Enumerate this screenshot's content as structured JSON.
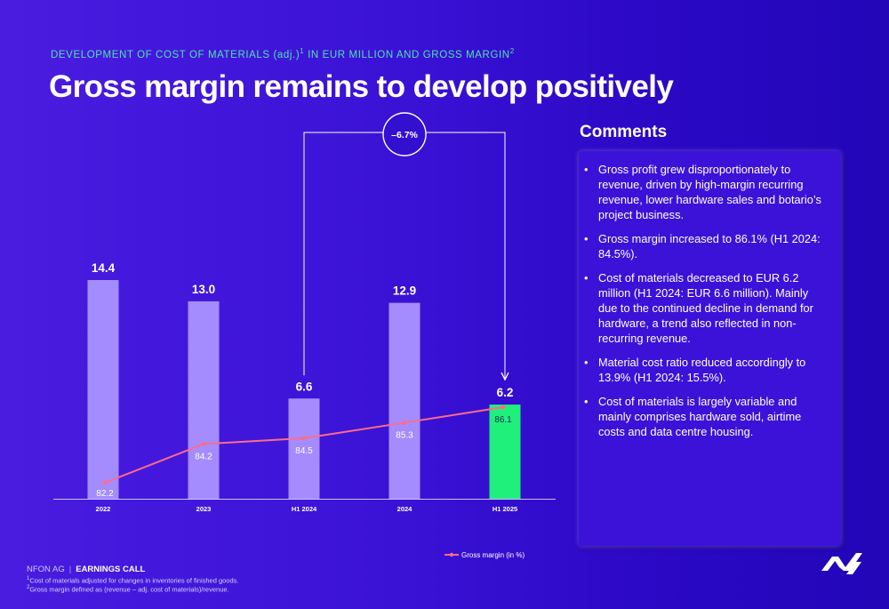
{
  "header": {
    "eyebrow_pre": "DEVELOPMENT OF COST OF MATERIALS (adj.)",
    "eyebrow_sup1": "1",
    "eyebrow_mid": " IN EUR MILLION AND GROSS MARGIN",
    "eyebrow_sup2": "2",
    "title": "Gross margin remains to develop positively"
  },
  "chart_data": {
    "type": "bar",
    "categories": [
      "2022",
      "2023",
      "H1 2024",
      "2024",
      "H1 2025"
    ],
    "series": [
      {
        "values": [
          14.4,
          13.0,
          6.6,
          12.9,
          6.2
        ],
        "value_labels": [
          "14.4",
          "13.0",
          "6.6",
          "12.9",
          "6.2"
        ]
      },
      {
        "name": "Gross margin (in %)",
        "type": "line",
        "values": [
          82.2,
          84.2,
          84.5,
          85.3,
          86.1
        ],
        "value_labels": [
          "82.2",
          "84.2",
          "84.5",
          "85.3",
          "86.1"
        ]
      }
    ],
    "ylim": [
      0,
      16
    ],
    "highlight_category": "H1 2025",
    "annotation": {
      "text": "–6.7%",
      "from": "H1 2024",
      "to": "H1 2025"
    },
    "colors": {
      "bar": "#a48cff",
      "highlight_bar": "#1ff07c",
      "line": "#ff6b8a",
      "axis": "#c9c0ff"
    }
  },
  "comments": {
    "title": "Comments",
    "bullet": "•",
    "items": [
      "Gross profit grew disproportionately to revenue, driven by high-margin recurring revenue, lower hardware sales and botario’s project business.",
      "Gross margin increased to 86.1% (H1 2024: 84.5%).",
      "Cost of materials decreased to EUR 6.2 million (H1 2024: EUR 6.6 million). Mainly due to the continued decline in demand for hardware, a trend also reflected in non-recurring revenue.",
      "Material cost ratio reduced accordingly to 13.9% (H1 2024: 15.5%).",
      "Cost of materials is largely variable and mainly comprises hardware sold, airtime costs and data centre housing."
    ]
  },
  "footer": {
    "company": "NFON AG",
    "separator": "|",
    "event": "EARNINGS CALL",
    "footnote1_sup": "1",
    "footnote1": "Cost of materials adjusted for changes in inventories of finished goods.",
    "footnote2_sup": "2",
    "footnote2": "Gross margin defined as (revenue – adj. cost of materials)/revenue."
  },
  "logo": {
    "icon": "nfon-logo-icon"
  }
}
